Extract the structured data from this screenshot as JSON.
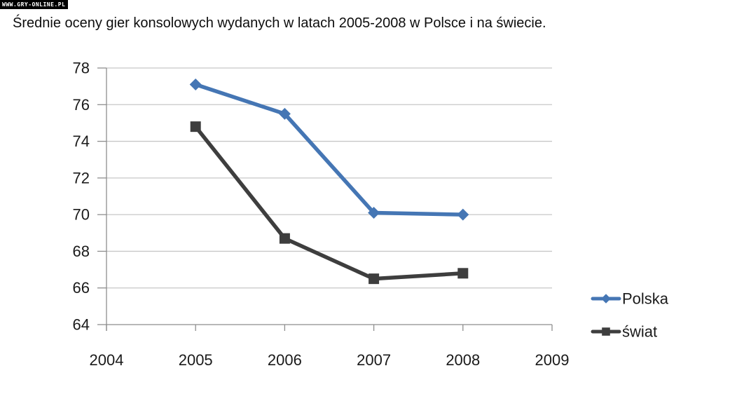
{
  "watermark": "WWW.GRY-ONLINE.PL",
  "chart_data": {
    "type": "line",
    "title": "Średnie oceny gier konsolowych wydanych w latach 2005-2008 w Polsce i na świecie.",
    "x": [
      2005,
      2006,
      2007,
      2008
    ],
    "series": [
      {
        "name": "Polska",
        "marker": "diamond",
        "color": "#4576B4",
        "values": [
          77.1,
          75.5,
          70.1,
          70.0
        ]
      },
      {
        "name": "świat",
        "marker": "square",
        "color": "#3E3E3E",
        "values": [
          74.8,
          68.7,
          66.5,
          66.8
        ]
      }
    ],
    "x_ticks": [
      2004,
      2005,
      2006,
      2007,
      2008,
      2009
    ],
    "y_ticks": [
      64,
      66,
      68,
      70,
      72,
      74,
      76,
      78
    ],
    "xlim": [
      2004,
      2009
    ],
    "ylim": [
      64,
      78
    ],
    "xlabel": "",
    "ylabel": "",
    "grid": "horizontal",
    "legend_position": "right",
    "colors": {
      "gridline": "#c7c7c7",
      "axis": "#8e8e8e",
      "tick_text": "#1a1a1a"
    }
  }
}
